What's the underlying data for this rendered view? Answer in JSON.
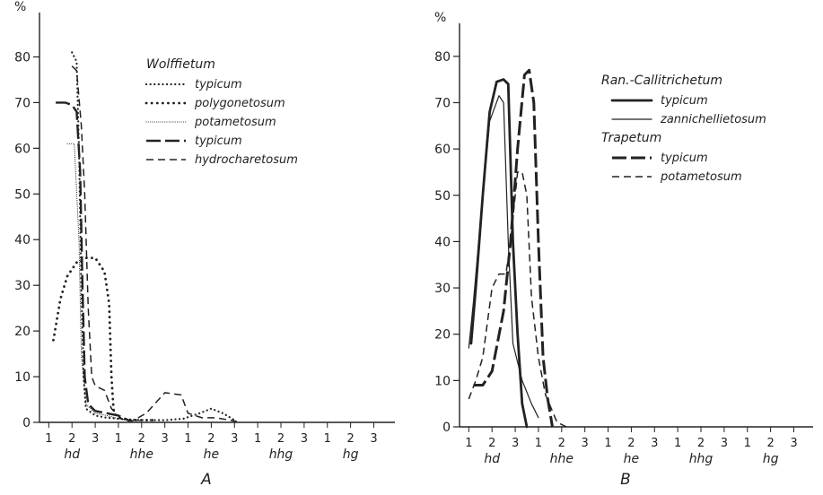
{
  "chart_data": [
    {
      "type": "line",
      "panel_label": "A",
      "ylabel": "%",
      "ylim": [
        0,
        85
      ],
      "yticks": [
        "0",
        "10",
        "20",
        "30",
        "40",
        "50",
        "60",
        "70",
        "80"
      ],
      "x_groups": [
        "hd",
        "hhe",
        "he",
        "hhg",
        "hg"
      ],
      "x_sub_ticks": [
        "1",
        "2",
        "3"
      ],
      "xlim": [
        0.6,
        15.6
      ],
      "legend_title": "Wolffietum",
      "grid": false,
      "series": [
        {
          "name": "typicum",
          "style": "dotted-fine",
          "points": [
            [
              2.0,
              81
            ],
            [
              2.2,
              79
            ],
            [
              2.3,
              60
            ],
            [
              2.4,
              30
            ],
            [
              2.5,
              10
            ],
            [
              2.6,
              3
            ],
            [
              3.0,
              1.5
            ],
            [
              3.5,
              1
            ],
            [
              4.0,
              0.8
            ],
            [
              5,
              0.5
            ],
            [
              6,
              0.5
            ],
            [
              6.8,
              0.8
            ],
            [
              7.5,
              2
            ],
            [
              8.0,
              3
            ],
            [
              8.5,
              2
            ],
            [
              9.0,
              0.5
            ]
          ]
        },
        {
          "name": "polygonetosum",
          "style": "dotted-coarse",
          "points": [
            [
              1.2,
              18
            ],
            [
              1.5,
              27
            ],
            [
              1.8,
              32
            ],
            [
              2.2,
              35
            ],
            [
              2.6,
              36
            ],
            [
              3.0,
              36
            ],
            [
              3.4,
              33
            ],
            [
              3.6,
              26
            ],
            [
              3.7,
              10
            ],
            [
              3.8,
              2
            ],
            [
              4.0,
              1
            ],
            [
              4.5,
              0.5
            ],
            [
              5.5,
              0.5
            ]
          ]
        },
        {
          "name": "potametosum",
          "style": "dotted-thin",
          "points": [
            [
              1.8,
              61
            ],
            [
              2.1,
              61
            ],
            [
              2.3,
              40
            ],
            [
              2.4,
              15
            ],
            [
              2.6,
              4
            ],
            [
              3.0,
              2
            ],
            [
              3.5,
              1.5
            ],
            [
              4.0,
              0.8
            ],
            [
              4.5,
              0.5
            ],
            [
              5.0,
              0.3
            ]
          ]
        },
        {
          "name": "typicum",
          "style": "longdash",
          "points": [
            [
              1.3,
              70
            ],
            [
              1.7,
              70
            ],
            [
              2.0,
              69.5
            ],
            [
              2.2,
              68
            ],
            [
              2.35,
              55
            ],
            [
              2.45,
              30
            ],
            [
              2.55,
              10
            ],
            [
              2.7,
              4
            ],
            [
              3.0,
              2.5
            ],
            [
              3.5,
              2
            ],
            [
              4.0,
              1.5
            ],
            [
              4.5,
              0.3
            ]
          ]
        },
        {
          "name": "hydrocharetosum",
          "style": "dash",
          "points": [
            [
              2.0,
              78
            ],
            [
              2.2,
              77
            ],
            [
              2.4,
              65
            ],
            [
              2.55,
              50
            ],
            [
              2.7,
              25
            ],
            [
              2.85,
              10
            ],
            [
              3.0,
              8
            ],
            [
              3.4,
              7
            ],
            [
              3.7,
              3
            ],
            [
              4.2,
              0.5
            ],
            [
              4.6,
              0.3
            ],
            [
              5.2,
              2
            ],
            [
              6.0,
              6.5
            ],
            [
              6.7,
              6
            ],
            [
              7.0,
              2
            ],
            [
              7.6,
              1
            ],
            [
              8.2,
              1
            ],
            [
              8.8,
              0.5
            ],
            [
              9.1,
              0.2
            ]
          ]
        }
      ]
    },
    {
      "type": "line",
      "panel_label": "B",
      "ylabel": "%",
      "ylim": [
        0,
        85
      ],
      "yticks": [
        "0",
        "10",
        "20",
        "30",
        "40",
        "50",
        "60",
        "70",
        "80"
      ],
      "x_groups": [
        "hd",
        "hhe",
        "he",
        "hhg",
        "hg"
      ],
      "x_sub_ticks": [
        "1",
        "2",
        "3"
      ],
      "xlim": [
        0.6,
        15.6
      ],
      "legend_groups": [
        {
          "title": "Ran.-Callitrichetum",
          "entries": [
            "typicum",
            "zannichellietosum"
          ]
        },
        {
          "title": "Trapetum",
          "entries": [
            "typicum",
            "potametosum"
          ]
        }
      ],
      "grid": false,
      "series": [
        {
          "name": "typicum",
          "style": "thick-solid",
          "points": [
            [
              1.1,
              18
            ],
            [
              1.3,
              30
            ],
            [
              1.6,
              50
            ],
            [
              1.9,
              68
            ],
            [
              2.2,
              74.5
            ],
            [
              2.5,
              75
            ],
            [
              2.7,
              74
            ],
            [
              2.9,
              40
            ],
            [
              3.1,
              20
            ],
            [
              3.3,
              5
            ],
            [
              3.5,
              0
            ]
          ]
        },
        {
          "name": "zannichellietosum",
          "style": "thin-solid",
          "points": [
            [
              1.0,
              17
            ],
            [
              1.2,
              27
            ],
            [
              1.6,
              50
            ],
            [
              1.9,
              66
            ],
            [
              2.3,
              71.5
            ],
            [
              2.5,
              70
            ],
            [
              2.7,
              40
            ],
            [
              2.9,
              18
            ],
            [
              3.3,
              10
            ],
            [
              3.7,
              5
            ],
            [
              4.0,
              2
            ]
          ]
        },
        {
          "name": "typicum",
          "style": "thick-longdash",
          "points": [
            [
              1.2,
              9
            ],
            [
              1.6,
              9
            ],
            [
              2.0,
              12
            ],
            [
              2.5,
              25
            ],
            [
              2.8,
              40
            ],
            [
              3.1,
              60
            ],
            [
              3.4,
              76
            ],
            [
              3.6,
              77
            ],
            [
              3.8,
              70
            ],
            [
              4.0,
              40
            ],
            [
              4.2,
              15
            ],
            [
              4.4,
              6
            ],
            [
              4.6,
              0
            ]
          ]
        },
        {
          "name": "potametosum",
          "style": "dash",
          "points": [
            [
              1.0,
              6
            ],
            [
              1.3,
              10
            ],
            [
              1.6,
              15
            ],
            [
              2.0,
              30
            ],
            [
              2.3,
              33
            ],
            [
              2.6,
              33
            ],
            [
              2.8,
              40
            ],
            [
              3.1,
              55
            ],
            [
              3.3,
              55
            ],
            [
              3.5,
              50
            ],
            [
              3.7,
              28
            ],
            [
              4.0,
              15
            ],
            [
              4.3,
              7
            ],
            [
              4.8,
              1
            ],
            [
              5.2,
              0
            ]
          ]
        }
      ]
    }
  ]
}
